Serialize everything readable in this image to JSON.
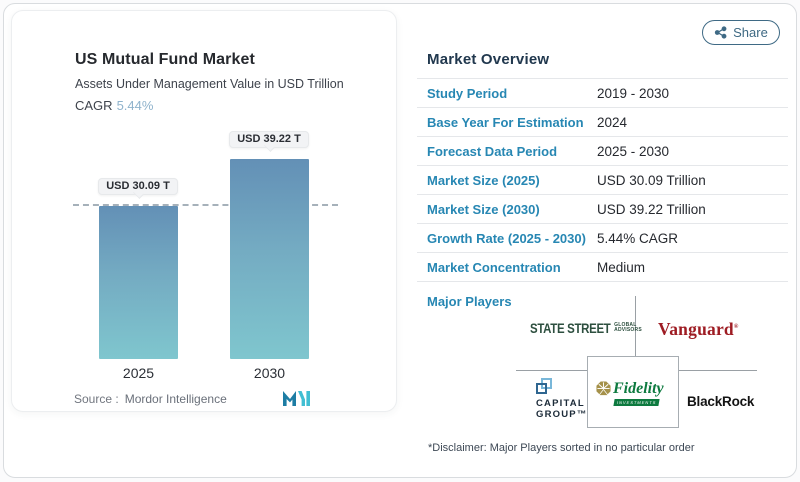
{
  "share": {
    "label": "Share"
  },
  "chart_card": {
    "title": "US Mutual Fund Market",
    "subtitle": "Assets Under Management Value in USD Trillion",
    "cagr_label": "CAGR",
    "cagr_value": "5.44%",
    "source_label": "Source :",
    "source_value": "Mordor Intelligence"
  },
  "chart_data": {
    "type": "bar",
    "categories": [
      "2025",
      "2030"
    ],
    "values": [
      30.09,
      39.22
    ],
    "bar_labels": [
      "USD 30.09 T",
      "USD 39.22 T"
    ],
    "title": "US Mutual Fund Market",
    "subtitle": "Assets Under Management Value in USD Trillion",
    "unit": "USD Trillion",
    "cagr": "5.44%",
    "ylim": [
      0,
      45
    ],
    "grid": false,
    "legend": "none",
    "annotations": [
      "horizontal dashed reference line at the 2025 bar top (30.09)"
    ]
  },
  "overview": {
    "heading": "Market Overview",
    "rows": [
      {
        "label": "Study Period",
        "value": "2019 - 2030"
      },
      {
        "label": "Base Year For Estimation",
        "value": "2024"
      },
      {
        "label": "Forecast Data Period",
        "value": "2025 - 2030"
      },
      {
        "label": "Market Size (2025)",
        "value": "USD 30.09 Trillion"
      },
      {
        "label": "Market Size (2030)",
        "value": "USD 39.22 Trillion"
      },
      {
        "label": "Growth Rate (2025 - 2030)",
        "value": "5.44% CAGR"
      },
      {
        "label": "Market Concentration",
        "value": "Medium"
      }
    ],
    "major_players_label": "Major Players",
    "disclaimer": "*Disclaimer: Major Players sorted in no particular order"
  },
  "logos": {
    "state_street": {
      "main": "STATE STREET",
      "stack1": "GLOBAL",
      "stack2": "ADVISORS",
      "color": "#2d4f3f"
    },
    "vanguard": {
      "text": "Vanguard",
      "reg": "®",
      "color": "#9e1c23"
    },
    "capital_group": {
      "line1": "CAPITAL",
      "line2": "GROUP™",
      "color": "#1b2a38"
    },
    "fidelity": {
      "text": "Fidelity",
      "sub": "INVESTMENTS",
      "color": "#0d7a3f"
    },
    "blackrock": {
      "text": "BlackRock",
      "color": "#141414"
    }
  },
  "colors": {
    "label_blue": "#2787b3",
    "heading_navy": "#21384e",
    "bar_gradient_top": "#6390b6",
    "bar_gradient_bottom": "#7fc6ce",
    "cagr_accent": "#8fb3cc",
    "share_outline": "#3f6a85",
    "separator": "#e5e7ea",
    "tree_line": "#9aa0a5",
    "mordor_dark": "#1d7da4",
    "mordor_cyan": "#41bed2"
  }
}
